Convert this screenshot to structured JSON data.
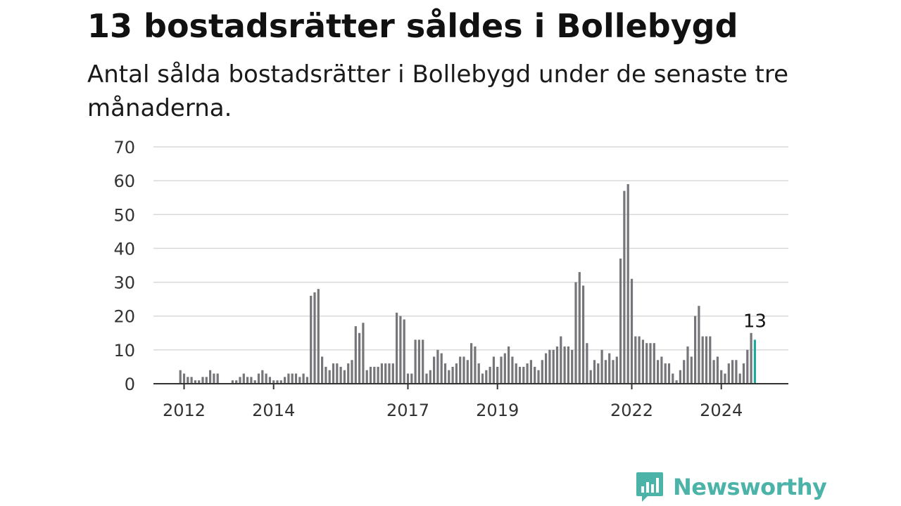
{
  "title": "13 bostadsrätter såldes i Bollebygd",
  "subtitle": "Antal sålda bostadsrätter i Bollebygd under de senaste tre månaderna.",
  "brand": {
    "name": "Newsworthy",
    "color": "#4cb3a8",
    "icon": "newsworthy-logo-icon"
  },
  "chart_data": {
    "type": "bar",
    "x_start": "2011-12",
    "y_ticks": [
      0,
      10,
      20,
      30,
      40,
      50,
      60,
      70
    ],
    "ylim": [
      0,
      70
    ],
    "x_tick_labels": [
      "2012",
      "2014",
      "2017",
      "2019",
      "2022",
      "2024"
    ],
    "x_tick_dates": [
      "2012-01",
      "2014-01",
      "2017-01",
      "2019-01",
      "2022-01",
      "2024-01"
    ],
    "bar_color": "#75757a",
    "highlight_color": "#1fa7a0",
    "highlight_label": "13",
    "values": [
      4,
      3,
      2,
      2,
      1,
      1,
      2,
      2,
      4,
      3,
      3,
      0,
      0,
      0,
      1,
      1,
      2,
      3,
      2,
      2,
      1,
      3,
      4,
      3,
      2,
      1,
      1,
      1,
      2,
      3,
      3,
      3,
      2,
      3,
      2,
      26,
      27,
      28,
      8,
      5,
      4,
      6,
      6,
      5,
      4,
      6,
      7,
      17,
      15,
      18,
      4,
      5,
      5,
      5,
      6,
      6,
      6,
      6,
      21,
      20,
      19,
      3,
      3,
      13,
      13,
      13,
      3,
      4,
      8,
      10,
      9,
      6,
      4,
      5,
      6,
      8,
      8,
      7,
      12,
      11,
      6,
      3,
      4,
      5,
      8,
      5,
      8,
      9,
      11,
      8,
      6,
      5,
      5,
      6,
      7,
      5,
      4,
      7,
      9,
      10,
      10,
      11,
      14,
      11,
      11,
      10,
      30,
      33,
      29,
      12,
      4,
      7,
      6,
      10,
      7,
      9,
      7,
      8,
      37,
      57,
      59,
      31,
      14,
      14,
      13,
      12,
      12,
      12,
      7,
      8,
      6,
      6,
      3,
      1,
      4,
      7,
      11,
      8,
      20,
      23,
      14,
      14,
      14,
      7,
      8,
      4,
      3,
      6,
      7,
      7,
      3,
      6,
      10,
      15,
      13
    ]
  }
}
